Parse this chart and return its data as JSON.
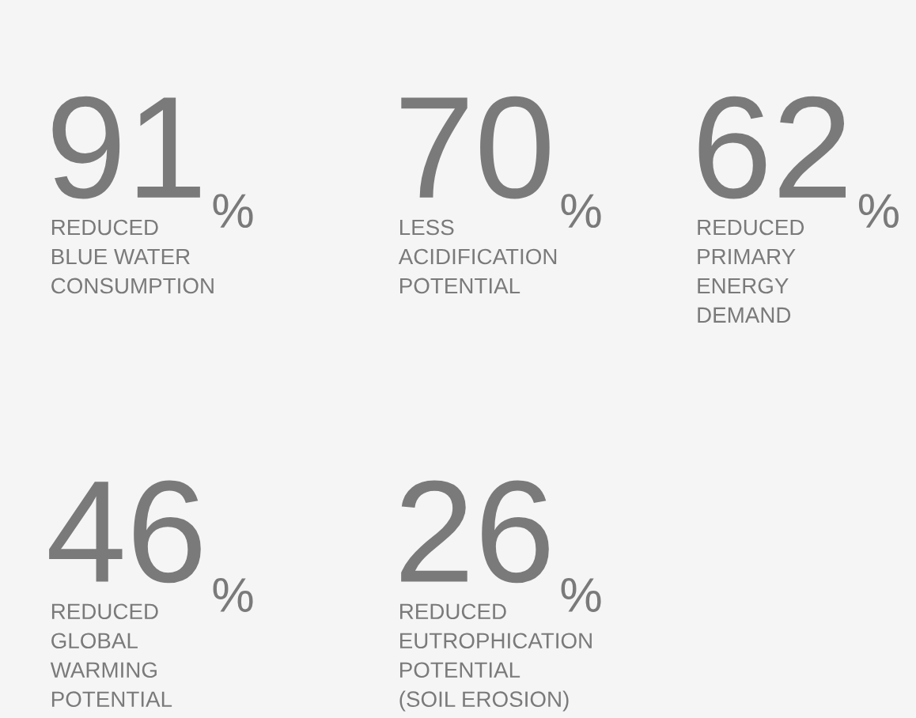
{
  "chart_data": {
    "type": "other",
    "categories": [
      "REDUCED\nBLUE WATER\nCONSUMPTION",
      "LESS\nACIDIFICATION\nPOTENTIAL",
      "REDUCED\nPRIMARY\nENERGY\nDEMAND",
      "REDUCED\nGLOBAL\nWARMING\nPOTENTIAL",
      "REDUCED\nEUTROPHICATION\nPOTENTIAL\n(SOIL EROSION)"
    ],
    "values": [
      91,
      70,
      62,
      46,
      26
    ],
    "value_labels": [
      "91%",
      "70%",
      "62%",
      "46%",
      "26%"
    ],
    "color": "#7a7a7a"
  }
}
